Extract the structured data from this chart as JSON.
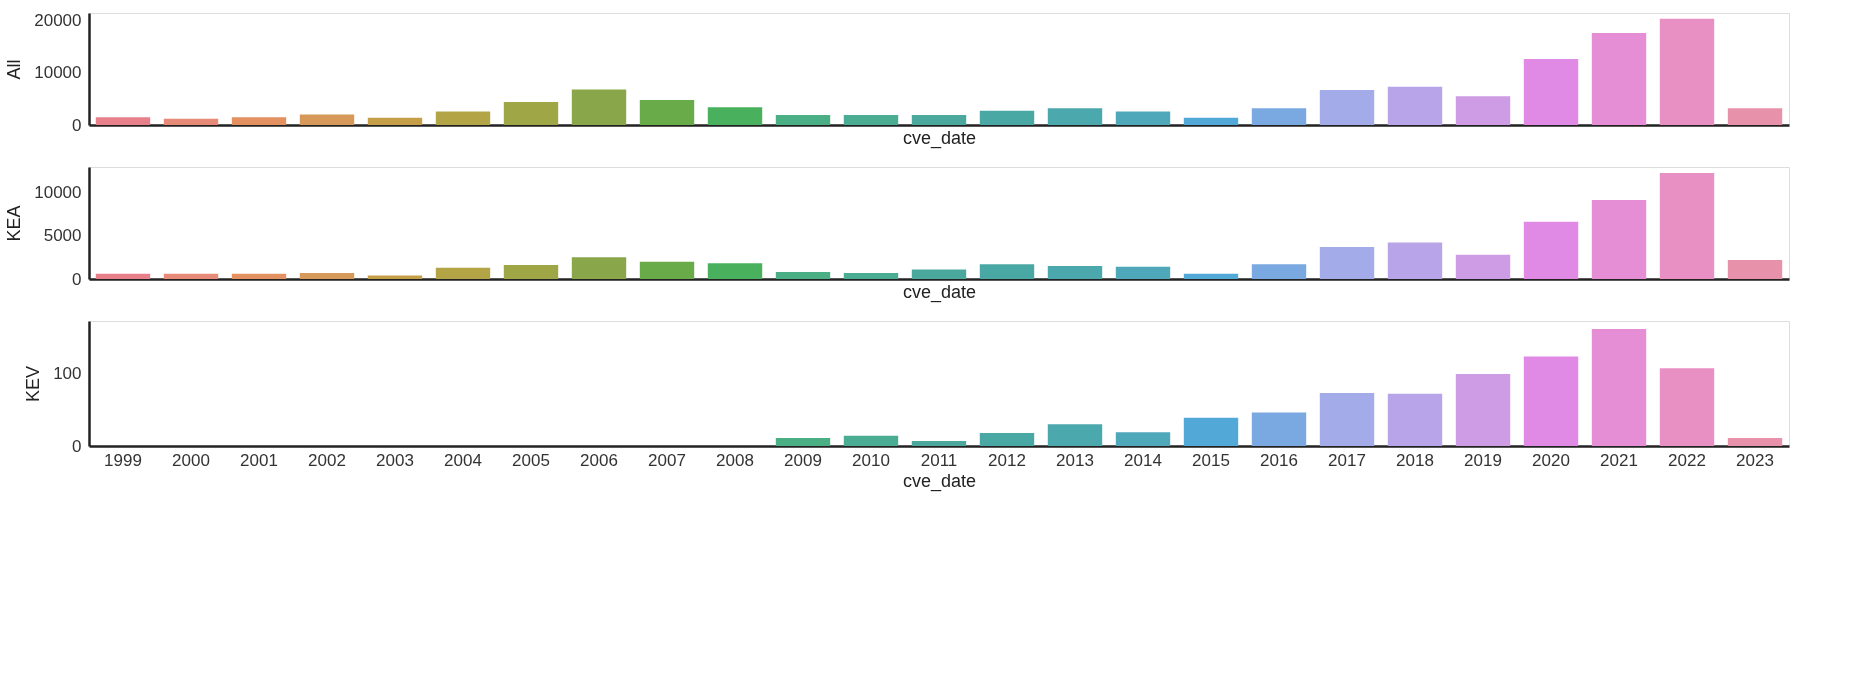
{
  "chart_data": [
    {
      "type": "bar",
      "xlabel": "cve_date",
      "ylabel": "All",
      "tick_labels": "y",
      "grid": false,
      "legend": false,
      "categories": [
        "1999",
        "2000",
        "2001",
        "2002",
        "2003",
        "2004",
        "2005",
        "2006",
        "2007",
        "2008",
        "2009",
        "2010",
        "2011",
        "2012",
        "2013",
        "2014",
        "2015",
        "2016",
        "2017",
        "2018",
        "2019",
        "2020",
        "2021",
        "2022",
        "2023"
      ],
      "values": [
        1500,
        1200,
        1500,
        2000,
        1400,
        2600,
        4400,
        6800,
        4800,
        3400,
        1900,
        1900,
        1900,
        2700,
        3200,
        2600,
        1400,
        3200,
        6700,
        7300,
        5500,
        12600,
        17600,
        20300,
        3200
      ],
      "colors": [
        "#e8808b",
        "#e88a78",
        "#e39160",
        "#d6995a",
        "#c59f48",
        "#b3a546",
        "#9ea646",
        "#8aa64b",
        "#6aab49",
        "#49b05e",
        "#4aaf84",
        "#4aac93",
        "#4aa99c",
        "#4aa8a4",
        "#4ba9ad",
        "#4ea8ba",
        "#52a9d8",
        "#7aa9e2",
        "#a3abe8",
        "#b8a4e8",
        "#cd9ce5",
        "#e08ae6",
        "#e68ed5",
        "#e890c3",
        "#e891aa"
      ],
      "ylim": [
        0,
        21400
      ],
      "yticks": [
        0,
        10000,
        20000
      ]
    },
    {
      "type": "bar",
      "xlabel": "cve_date",
      "ylabel": "KEA",
      "tick_labels": "y",
      "grid": false,
      "legend": false,
      "categories": [
        "1999",
        "2000",
        "2001",
        "2002",
        "2003",
        "2004",
        "2005",
        "2006",
        "2007",
        "2008",
        "2009",
        "2010",
        "2011",
        "2012",
        "2013",
        "2014",
        "2015",
        "2016",
        "2017",
        "2018",
        "2019",
        "2020",
        "2021",
        "2022",
        "2023"
      ],
      "values": [
        600,
        600,
        600,
        700,
        400,
        1300,
        1600,
        2500,
        2000,
        1800,
        800,
        700,
        1100,
        1700,
        1500,
        1400,
        600,
        1700,
        3700,
        4200,
        2800,
        6600,
        9100,
        12200,
        2200
      ],
      "colors": [
        "#e8808b",
        "#e88a78",
        "#e39160",
        "#d6995a",
        "#c59f48",
        "#b3a546",
        "#9ea646",
        "#8aa64b",
        "#6aab49",
        "#49b05e",
        "#4aaf84",
        "#4aac93",
        "#4aa99c",
        "#4aa8a4",
        "#4ba9ad",
        "#4ea8ba",
        "#52a9d8",
        "#7aa9e2",
        "#a3abe8",
        "#b8a4e8",
        "#cd9ce5",
        "#e08ae6",
        "#e68ed5",
        "#e890c3",
        "#e891aa"
      ],
      "ylim": [
        0,
        12900
      ],
      "yticks": [
        0,
        5000,
        10000
      ]
    },
    {
      "type": "bar",
      "xlabel": "cve_date",
      "ylabel": "KEV",
      "grid": false,
      "legend": false,
      "categories": [
        "1999",
        "2000",
        "2001",
        "2002",
        "2003",
        "2004",
        "2005",
        "2006",
        "2007",
        "2008",
        "2009",
        "2010",
        "2011",
        "2012",
        "2013",
        "2014",
        "2015",
        "2016",
        "2017",
        "2018",
        "2019",
        "2020",
        "2021",
        "2022",
        "2023"
      ],
      "values": [
        0,
        0,
        0,
        0,
        0,
        0,
        0,
        0,
        0,
        0,
        11,
        14,
        7,
        18,
        30,
        19,
        39,
        46,
        73,
        72,
        99,
        123,
        161,
        107,
        11
      ],
      "colors": [
        "#e8808b",
        "#e88a78",
        "#e39160",
        "#d6995a",
        "#c59f48",
        "#b3a546",
        "#9ea646",
        "#8aa64b",
        "#6aab49",
        "#49b05e",
        "#4aaf84",
        "#4aac93",
        "#4aa99c",
        "#4aa8a4",
        "#4ba9ad",
        "#4ea8ba",
        "#52a9d8",
        "#7aa9e2",
        "#a3abe8",
        "#b8a4e8",
        "#cd9ce5",
        "#e08ae6",
        "#e68ed5",
        "#e890c3",
        "#e891aa"
      ],
      "ylim": [
        0,
        172
      ],
      "yticks": [
        0,
        100
      ]
    }
  ]
}
